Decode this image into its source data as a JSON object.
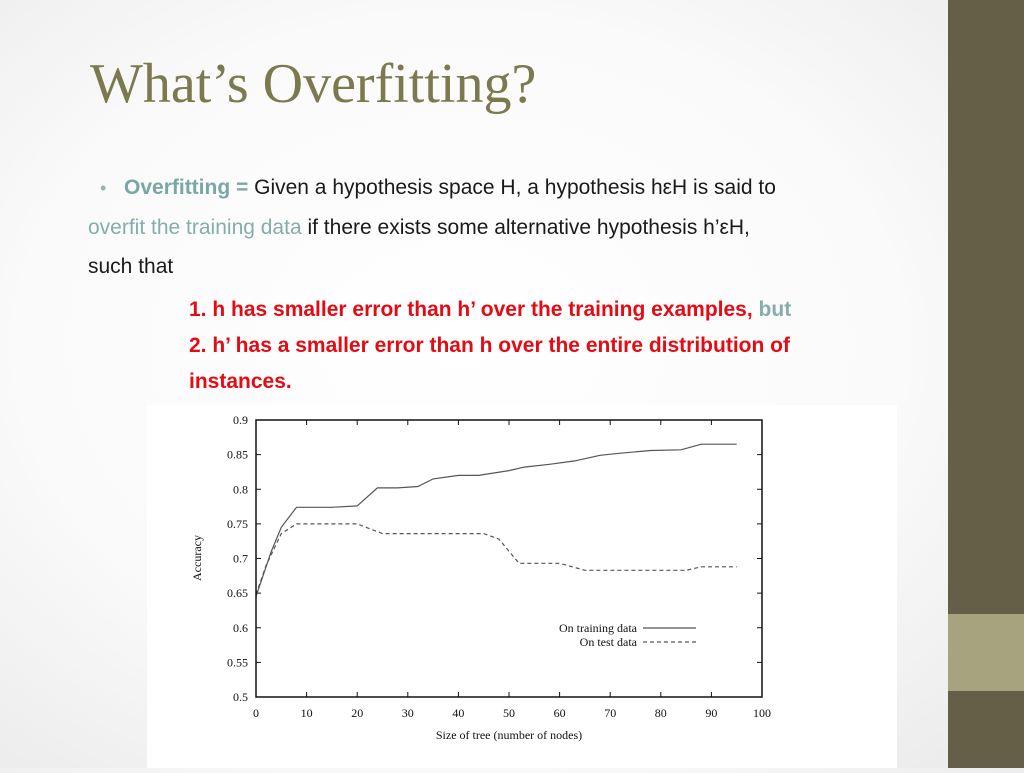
{
  "slide": {
    "title": "What’s Overfitting?",
    "definition": {
      "term": "Overfitting =",
      "text1": " Given a hypothesis space H, a hypothesis hεH is said to",
      "highlight": "overfit the training data",
      "text2": " if there exists some alternative hypothesis  h’εH,",
      "text3": "such that"
    },
    "points": {
      "item1": "1. h has smaller error than h’ over the training examples,",
      "item1_tail": "but",
      "item2_line1": "2. h’ has a smaller error than h over the entire distribution of",
      "item2_line2": "instances."
    },
    "colors": {
      "sidebar": "#655f48",
      "sidebar_accent": "#a8a37f",
      "title": "#7b7a4e",
      "accent_teal": "#79a7a5",
      "emphasis_red": "#e30b14"
    }
  },
  "chart_data": {
    "type": "line",
    "xlabel": "Size of tree (number of nodes)",
    "ylabel": "Accuracy",
    "xlim": [
      0,
      100
    ],
    "ylim": [
      0.5,
      0.9
    ],
    "x_ticks": [
      "0",
      "10",
      "20",
      "30",
      "40",
      "50",
      "60",
      "70",
      "80",
      "90",
      "100"
    ],
    "y_ticks": [
      "0.9",
      "0.85",
      "0.8",
      "0.75",
      "0.7",
      "0.65",
      "0.6",
      "0.55",
      "0.5"
    ],
    "legend_position": "bottom-right",
    "grid": false,
    "series": [
      {
        "name": "On training data",
        "style": "solid",
        "x": [
          0,
          3,
          5,
          8,
          10,
          15,
          20,
          24,
          28,
          32,
          35,
          40,
          44,
          50,
          53,
          58,
          63,
          68,
          72,
          78,
          84,
          88,
          92,
          95
        ],
        "y": [
          0.645,
          0.71,
          0.745,
          0.774,
          0.774,
          0.774,
          0.776,
          0.802,
          0.802,
          0.804,
          0.815,
          0.82,
          0.82,
          0.827,
          0.832,
          0.836,
          0.841,
          0.849,
          0.852,
          0.856,
          0.857,
          0.865,
          0.865,
          0.865
        ]
      },
      {
        "name": "On test data",
        "style": "dashed",
        "x": [
          0,
          2,
          5,
          8,
          10,
          15,
          20,
          25,
          30,
          35,
          40,
          45,
          48,
          52,
          56,
          60,
          65,
          70,
          75,
          80,
          85,
          88,
          92,
          95
        ],
        "y": [
          0.648,
          0.69,
          0.736,
          0.75,
          0.75,
          0.75,
          0.75,
          0.736,
          0.736,
          0.736,
          0.736,
          0.736,
          0.728,
          0.693,
          0.693,
          0.693,
          0.683,
          0.683,
          0.683,
          0.683,
          0.683,
          0.688,
          0.688,
          0.688
        ]
      }
    ]
  }
}
